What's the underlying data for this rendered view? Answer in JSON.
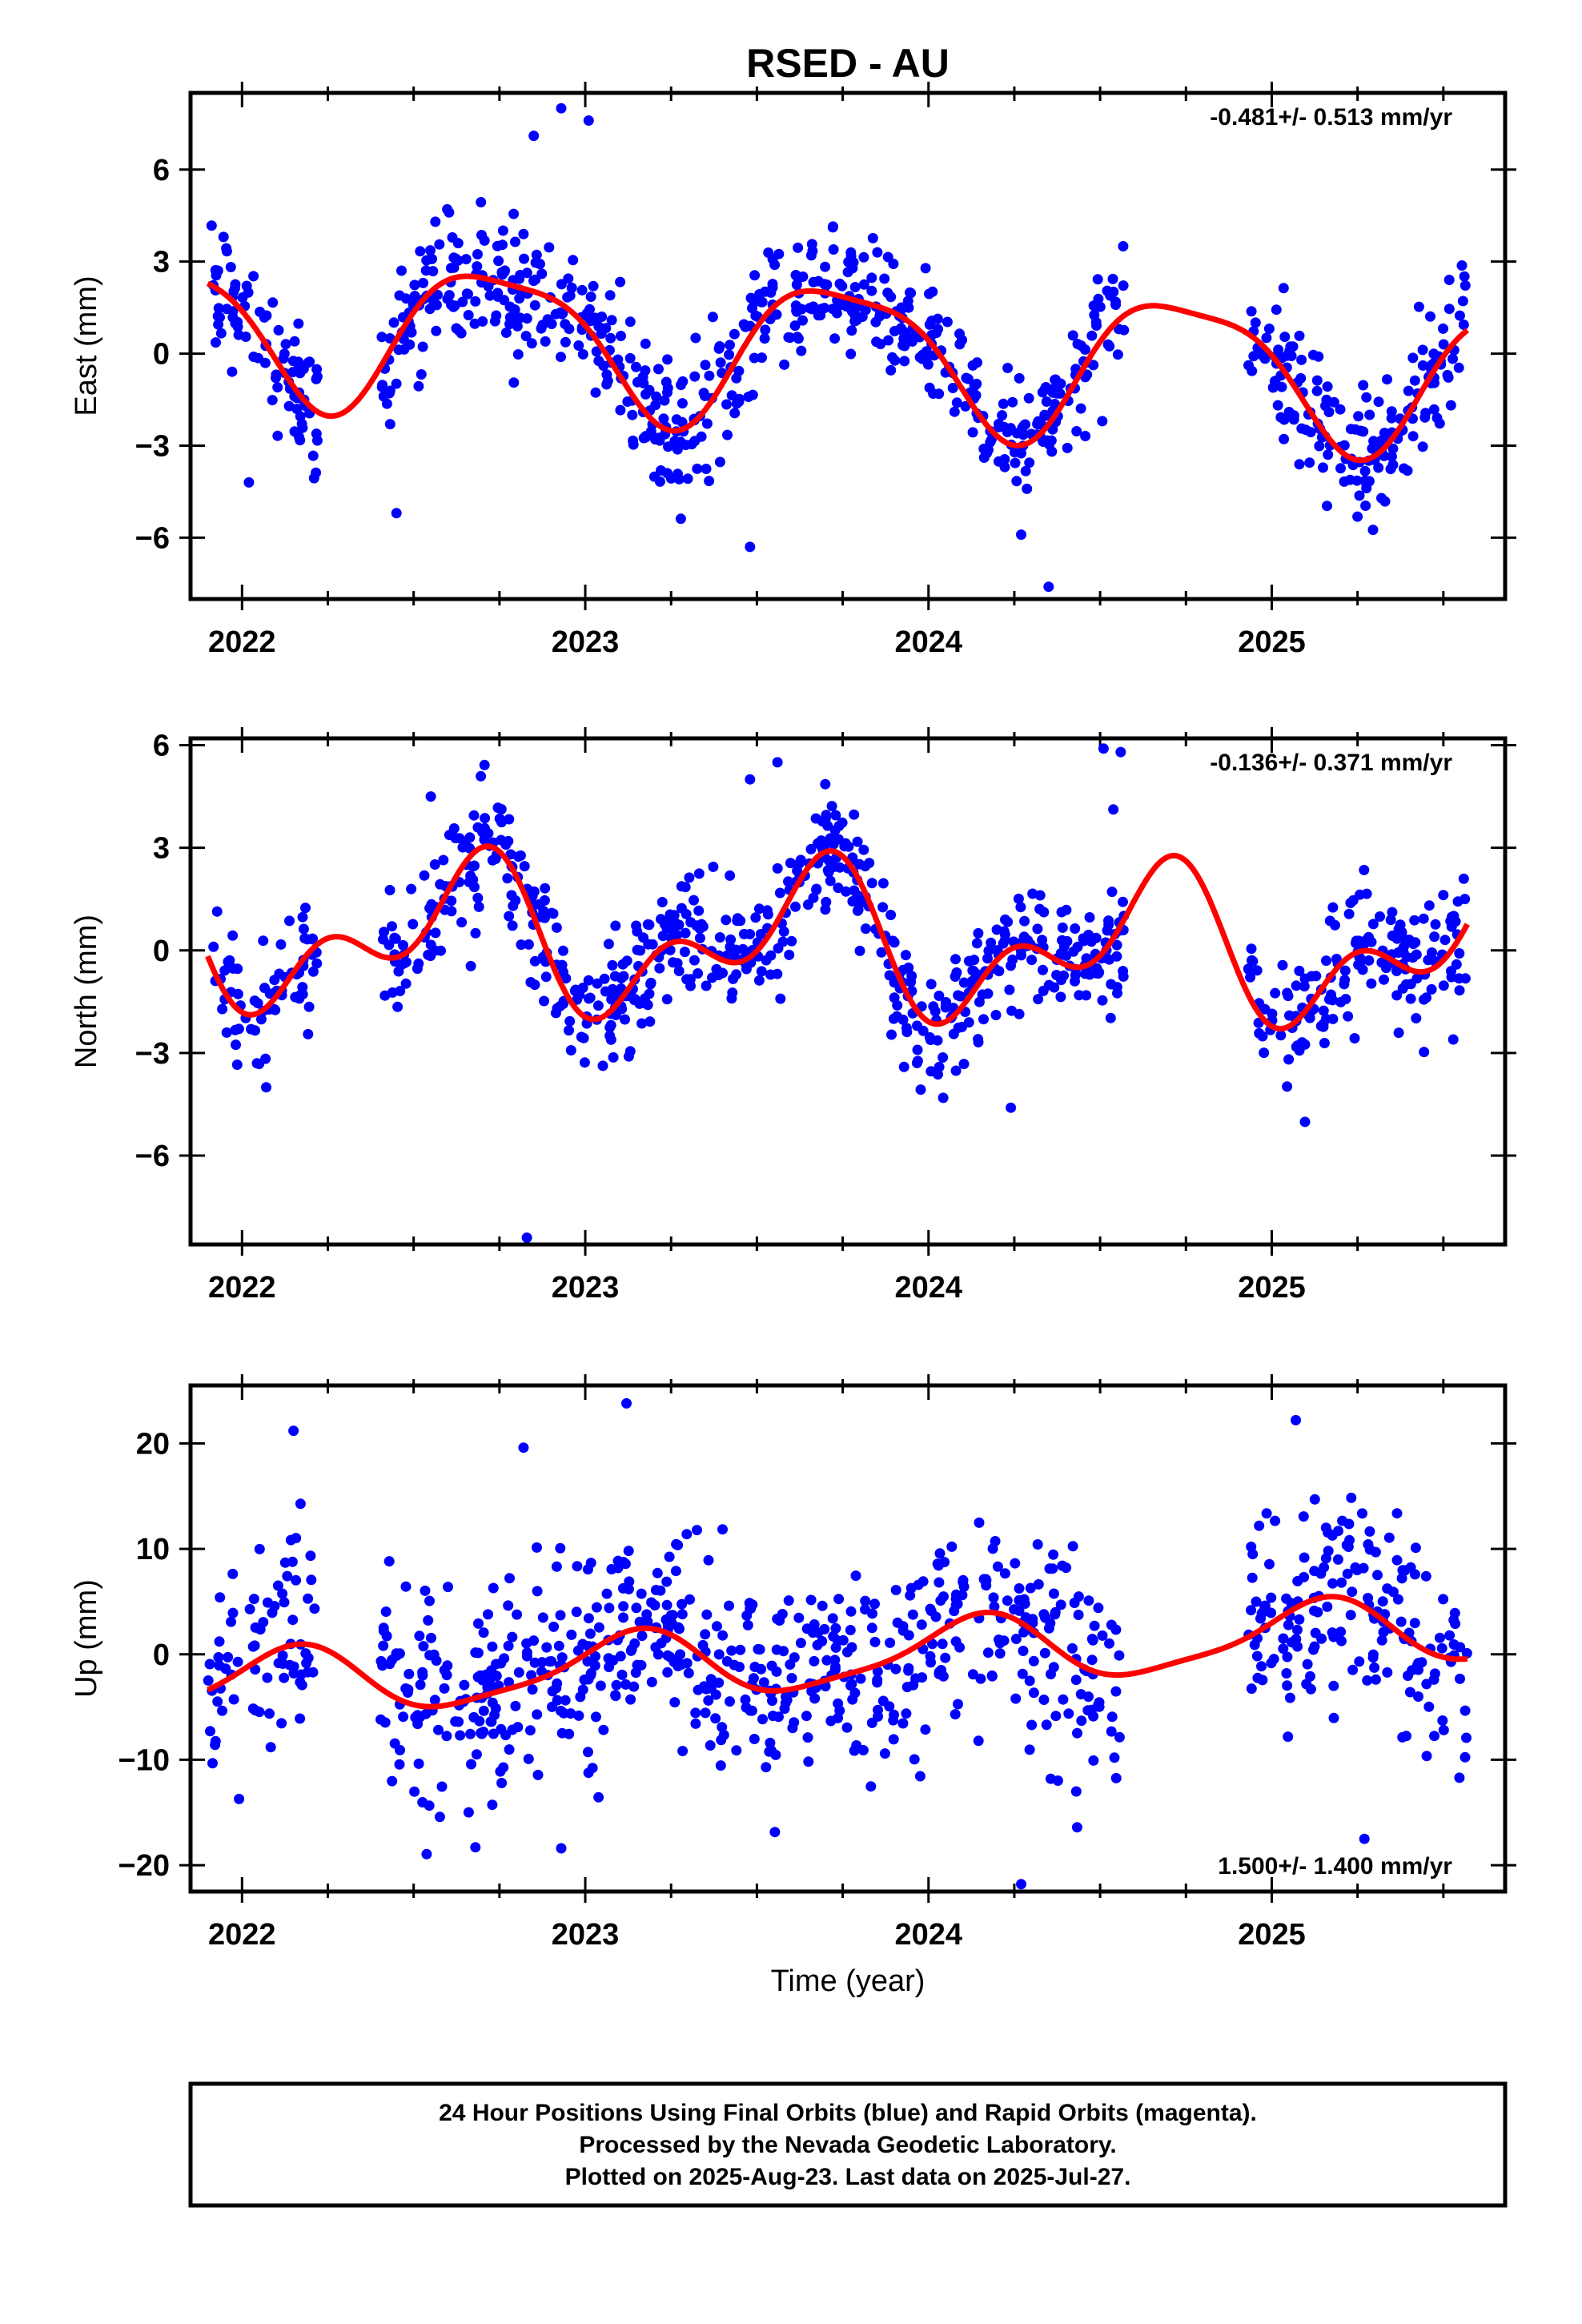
{
  "figure": {
    "title": "RSED - AU",
    "xlabel": "Time (year)",
    "footer": [
      "24 Hour Positions Using Final Orbits (blue) and Rapid Orbits (magenta).",
      "Processed by the Nevada Geodetic Laboratory.",
      "Plotted on 2025-Aug-23. Last data on 2025-Jul-27."
    ]
  },
  "colors": {
    "final_orbit_points": "#0000ff",
    "model_curve": "#ff0000",
    "axes": "#000000"
  },
  "chart_data": [
    {
      "type": "scatter",
      "component": "east",
      "ylabel": "East (mm)",
      "rate_label": "-0.481+/- 0.513 mm/yr",
      "xlim": [
        2021.85,
        2025.68
      ],
      "ylim": [
        -8,
        8.5
      ],
      "x_ticks": [
        2022,
        2023,
        2024,
        2025
      ],
      "y_ticks": [
        -6,
        -3,
        0,
        3,
        6
      ],
      "y_tick_labels": [
        "−6",
        "−3",
        "0",
        "3",
        "6"
      ],
      "model": {
        "offset": 0.1,
        "rate": -0.481,
        "ref_year": 2023.75,
        "annual_cos": -0.1,
        "annual_sin": -2.3,
        "semiannual_cos": 0.55,
        "semiannual_sin": 0.15
      },
      "scatter": {
        "count": 1000,
        "noise": 1.05,
        "gaps": [
          [
            2022.22,
            2022.4
          ],
          [
            2024.57,
            2024.93
          ]
        ],
        "outliers": [
          [
            2022.85,
            7.1
          ],
          [
            2022.93,
            8.0
          ],
          [
            2023.01,
            7.6
          ],
          [
            2022.02,
            -4.2
          ],
          [
            2023.48,
            -6.3
          ],
          [
            2024.35,
            -7.6
          ],
          [
            2024.27,
            -5.9
          ],
          [
            2022.45,
            -5.2
          ]
        ]
      }
    },
    {
      "type": "scatter",
      "component": "north",
      "ylabel": "North (mm)",
      "rate_label": "-0.136+/- 0.371 mm/yr",
      "xlim": [
        2021.85,
        2025.68
      ],
      "ylim": [
        -8.6,
        6.2
      ],
      "x_ticks": [
        2022,
        2023,
        2024,
        2025
      ],
      "y_ticks": [
        -6,
        -3,
        0,
        3,
        6
      ],
      "y_tick_labels": [
        "−6",
        "−3",
        "0",
        "3",
        "6"
      ],
      "model": {
        "offset": 0.2,
        "rate": -0.136,
        "ref_year": 2023.75,
        "annual_cos": -1.0,
        "annual_sin": -1.3,
        "semiannual_cos": -1.25,
        "semiannual_sin": 0.2
      },
      "scatter": {
        "count": 1000,
        "noise": 0.95,
        "gaps": [
          [
            2022.22,
            2022.4
          ],
          [
            2024.57,
            2024.93
          ]
        ],
        "outliers": [
          [
            2022.83,
            -8.4
          ],
          [
            2023.56,
            5.5
          ],
          [
            2024.51,
            5.9
          ],
          [
            2024.56,
            5.8
          ],
          [
            2022.55,
            4.5
          ],
          [
            2023.48,
            5.0
          ],
          [
            2024.24,
            -4.6
          ]
        ]
      }
    },
    {
      "type": "scatter",
      "component": "up",
      "ylabel": "Up (mm)",
      "rate_label": "1.500+/- 1.400 mm/yr",
      "xlim": [
        2021.85,
        2025.68
      ],
      "ylim": [
        -22.5,
        25.5
      ],
      "x_ticks": [
        2022,
        2023,
        2024,
        2025
      ],
      "y_ticks": [
        -20,
        -10,
        0,
        10,
        20
      ],
      "y_tick_labels": [
        "−20",
        "−10",
        "0",
        "10",
        "20"
      ],
      "model": {
        "offset": -0.3,
        "rate": 1.5,
        "ref_year": 2023.75,
        "annual_cos": 2.0,
        "annual_sin": 2.3,
        "semiannual_cos": -0.6,
        "semiannual_sin": 0.4
      },
      "scatter": {
        "count": 1000,
        "noise": 5.0,
        "gaps": [
          [
            2022.22,
            2022.4
          ],
          [
            2024.57,
            2024.93
          ]
        ],
        "outliers": [
          [
            2023.12,
            23.8
          ],
          [
            2022.15,
            21.2
          ],
          [
            2025.07,
            22.2
          ],
          [
            2024.27,
            -21.8
          ],
          [
            2025.27,
            -17.5
          ],
          [
            2022.68,
            -18.3
          ],
          [
            2022.93,
            -18.4
          ],
          [
            2022.82,
            19.6
          ]
        ]
      }
    }
  ]
}
